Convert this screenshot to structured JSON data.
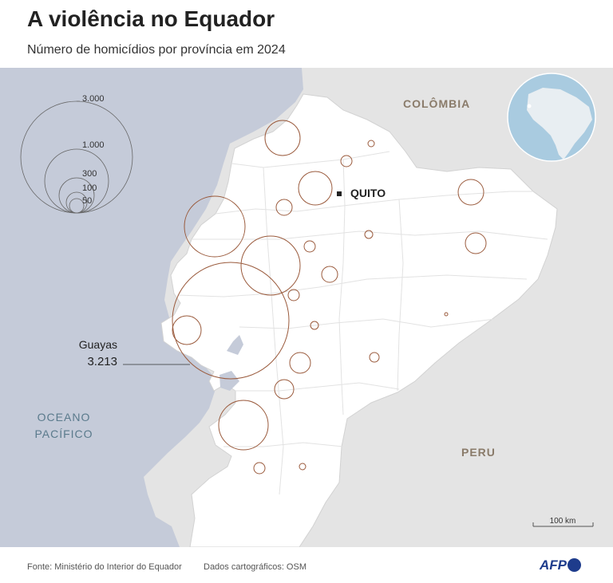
{
  "title": "A violência no Equador",
  "subtitle": "Número de homicídios por província em 2024",
  "map": {
    "labels": {
      "colombia": "COLÔMBIA",
      "peru": "PERU",
      "ocean_line1": "OCEANO",
      "ocean_line2": "PACÍFICO",
      "capital": "QUITO",
      "callout_name": "Guayas",
      "callout_value": "3.213"
    },
    "legend": {
      "values": [
        "3.000",
        "1.000",
        "300",
        "100",
        "50"
      ]
    },
    "scale_bar": "100 km",
    "colors": {
      "ocean": "#c5cbd9",
      "land_neighbor": "#e4e4e4",
      "ecuador": "#ffffff",
      "circle_stroke": "#9a5a3c",
      "globe_ocean": "#a9cbe0"
    }
  },
  "footer": {
    "source": "Fonte: Ministério do Interior do Equador",
    "cartography": "Dados cartográficos: OSM",
    "logo": "AFP"
  }
}
